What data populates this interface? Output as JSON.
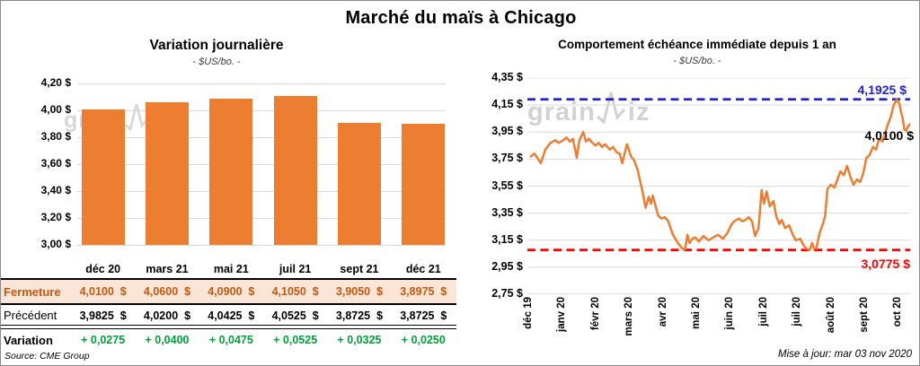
{
  "page": {
    "title": "Marché du maïs à Chicago",
    "source": "Source: CME Group",
    "updated": "Mise à jour: mar 03 nov 2020",
    "watermark": "grainwiz"
  },
  "colors": {
    "accent_orange": "#ED7D31",
    "max_blue": "#2121CE",
    "min_red": "#FF0000",
    "gain_green": "#00A139",
    "close_text": "#C45911",
    "close_bg": "#FBE5D6",
    "grid": "#D9D9D9",
    "watermark": "#D7D7D7"
  },
  "chart_data": [
    {
      "type": "bar",
      "title": "Variation journalière",
      "subtitle": "- $US/bo. -",
      "categories": [
        "déc 20",
        "mars 21",
        "mai 21",
        "juil 21",
        "sept 21",
        "déc 21"
      ],
      "values": [
        4.01,
        4.06,
        4.09,
        4.105,
        3.905,
        3.8975
      ],
      "ylim": [
        3.0,
        4.2
      ],
      "ytick_step": 0.2,
      "ytick_labels": [
        "3,00 $",
        "3,20 $",
        "3,40 $",
        "3,60 $",
        "3,80 $",
        "4,00 $",
        "4,20 $"
      ],
      "bar_color": "#ED7D31",
      "grid": true,
      "legend": "none"
    },
    {
      "type": "line",
      "title": "Comportement échéance immédiate depuis 1 an",
      "subtitle": "- $US/bo. -",
      "x_labels": [
        "déc 19",
        "janv 20",
        "févr 20",
        "mars 20",
        "avr 20",
        "mai 20",
        "juin 20",
        "juil 20",
        "juil 20",
        "août 20",
        "sept 20",
        "oct 20"
      ],
      "ylim": [
        2.75,
        4.35
      ],
      "ytick_step": 0.2,
      "ytick_labels": [
        "4,35 $",
        "4,15 $",
        "3,95 $",
        "3,75 $",
        "3,55 $",
        "3,35 $",
        "3,15 $",
        "2,95 $",
        "2,75 $"
      ],
      "line_color": "#ED7D31",
      "grid": true,
      "legend": "none",
      "ref_lines": [
        {
          "value": 4.1925,
          "label": "4,1925 $",
          "color": "#2121CE",
          "style": "dashed",
          "role": "max-1yr"
        },
        {
          "value": 3.0775,
          "label": "3,0775 $",
          "color": "#FF0000",
          "style": "dashed",
          "role": "min-1yr"
        }
      ],
      "last_point_label": {
        "value": 4.01,
        "label": "4,0100 $",
        "color": "#000000"
      },
      "points": [
        [
          0.009,
          3.77
        ],
        [
          0.018,
          3.79
        ],
        [
          0.026,
          3.76
        ],
        [
          0.035,
          3.72
        ],
        [
          0.047,
          3.82
        ],
        [
          0.06,
          3.87
        ],
        [
          0.073,
          3.89
        ],
        [
          0.081,
          3.87
        ],
        [
          0.094,
          3.89
        ],
        [
          0.102,
          3.91
        ],
        [
          0.111,
          3.88
        ],
        [
          0.119,
          3.9
        ],
        [
          0.129,
          3.76
        ],
        [
          0.136,
          3.89
        ],
        [
          0.146,
          3.95
        ],
        [
          0.153,
          3.88
        ],
        [
          0.161,
          3.9
        ],
        [
          0.17,
          3.87
        ],
        [
          0.178,
          3.85
        ],
        [
          0.186,
          3.87
        ],
        [
          0.195,
          3.84
        ],
        [
          0.203,
          3.86
        ],
        [
          0.216,
          3.82
        ],
        [
          0.224,
          3.84
        ],
        [
          0.233,
          3.8
        ],
        [
          0.241,
          3.79
        ],
        [
          0.248,
          3.72
        ],
        [
          0.26,
          3.86
        ],
        [
          0.271,
          3.77
        ],
        [
          0.279,
          3.74
        ],
        [
          0.288,
          3.67
        ],
        [
          0.3,
          3.52
        ],
        [
          0.309,
          3.39
        ],
        [
          0.317,
          3.47
        ],
        [
          0.323,
          3.42
        ],
        [
          0.328,
          3.48
        ],
        [
          0.334,
          3.41
        ],
        [
          0.342,
          3.33
        ],
        [
          0.351,
          3.31
        ],
        [
          0.359,
          3.32
        ],
        [
          0.368,
          3.29
        ],
        [
          0.38,
          3.19
        ],
        [
          0.393,
          3.13
        ],
        [
          0.404,
          3.09
        ],
        [
          0.412,
          3.08
        ],
        [
          0.418,
          3.19
        ],
        [
          0.424,
          3.13
        ],
        [
          0.431,
          3.16
        ],
        [
          0.439,
          3.17
        ],
        [
          0.448,
          3.14
        ],
        [
          0.46,
          3.18
        ],
        [
          0.473,
          3.15
        ],
        [
          0.486,
          3.17
        ],
        [
          0.498,
          3.19
        ],
        [
          0.511,
          3.16
        ],
        [
          0.524,
          3.21
        ],
        [
          0.532,
          3.26
        ],
        [
          0.54,
          3.29
        ],
        [
          0.553,
          3.31
        ],
        [
          0.561,
          3.29
        ],
        [
          0.57,
          3.3
        ],
        [
          0.578,
          3.32
        ],
        [
          0.587,
          3.29
        ],
        [
          0.595,
          3.18
        ],
        [
          0.604,
          3.24
        ],
        [
          0.612,
          3.52
        ],
        [
          0.618,
          3.42
        ],
        [
          0.625,
          3.51
        ],
        [
          0.633,
          3.4
        ],
        [
          0.643,
          3.44
        ],
        [
          0.65,
          3.33
        ],
        [
          0.658,
          3.27
        ],
        [
          0.665,
          3.3
        ],
        [
          0.673,
          3.24
        ],
        [
          0.684,
          3.26
        ],
        [
          0.692,
          3.2
        ],
        [
          0.701,
          3.15
        ],
        [
          0.713,
          3.16
        ],
        [
          0.722,
          3.11
        ],
        [
          0.73,
          3.085
        ],
        [
          0.738,
          3.08
        ],
        [
          0.744,
          3.13
        ],
        [
          0.749,
          3.085
        ],
        [
          0.755,
          3.09
        ],
        [
          0.764,
          3.21
        ],
        [
          0.772,
          3.27
        ],
        [
          0.778,
          3.33
        ],
        [
          0.784,
          3.53
        ],
        [
          0.793,
          3.56
        ],
        [
          0.802,
          3.54
        ],
        [
          0.81,
          3.6
        ],
        [
          0.818,
          3.66
        ],
        [
          0.827,
          3.63
        ],
        [
          0.835,
          3.7
        ],
        [
          0.844,
          3.62
        ],
        [
          0.852,
          3.56
        ],
        [
          0.861,
          3.6
        ],
        [
          0.869,
          3.58
        ],
        [
          0.877,
          3.64
        ],
        [
          0.886,
          3.76
        ],
        [
          0.894,
          3.78
        ],
        [
          0.903,
          3.84
        ],
        [
          0.911,
          3.82
        ],
        [
          0.919,
          3.9
        ],
        [
          0.928,
          3.88
        ],
        [
          0.936,
          3.95
        ],
        [
          0.941,
          4.0
        ],
        [
          0.949,
          4.06
        ],
        [
          0.957,
          4.15
        ],
        [
          0.965,
          4.19
        ],
        [
          0.972,
          4.16
        ],
        [
          0.976,
          4.1
        ],
        [
          0.98,
          4.06
        ],
        [
          0.985,
          3.97
        ],
        [
          0.99,
          3.96
        ],
        [
          0.994,
          3.99
        ],
        [
          1.0,
          4.01
        ]
      ]
    }
  ],
  "table": {
    "header": [
      "déc 20",
      "mars 21",
      "mai 21",
      "juil 21",
      "sept 21",
      "déc 21"
    ],
    "rows": [
      {
        "label": "Fermeture",
        "style": "close",
        "values": [
          "4,0100  $",
          "4,0600  $",
          "4,0900  $",
          "4,1050  $",
          "3,9050  $",
          "3,8975  $"
        ]
      },
      {
        "label": "Précédent",
        "style": "previous",
        "values": [
          "3,9825  $",
          "4,0200  $",
          "4,0425  $",
          "4,0525  $",
          "3,8725  $",
          "3,8725  $"
        ]
      },
      {
        "label": "Variation",
        "style": "variation",
        "values": [
          "+ 0,0275",
          "+ 0,0400",
          "+ 0,0475",
          "+ 0,0525",
          "+ 0,0325",
          "+ 0,0250"
        ]
      }
    ]
  }
}
